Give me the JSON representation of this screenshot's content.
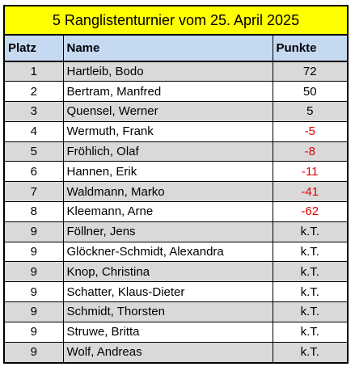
{
  "title": "5 Ranglistenturnier vom 25. April 2025",
  "headers": {
    "platz": "Platz",
    "name": "Name",
    "punkte": "Punkte"
  },
  "colors": {
    "title_background": "#ffff00",
    "header_background": "#c5d9f1",
    "odd_row_background": "#d9d9d9",
    "negative_points": "#e00000"
  },
  "rows": [
    {
      "platz": "1",
      "name": "Hartleib, Bodo",
      "punkte": "72",
      "negative": false
    },
    {
      "platz": "2",
      "name": "Bertram, Manfred",
      "punkte": "50",
      "negative": false
    },
    {
      "platz": "3",
      "name": "Quensel, Werner",
      "punkte": "5",
      "negative": false
    },
    {
      "platz": "4",
      "name": "Wermuth, Frank",
      "punkte": "-5",
      "negative": true
    },
    {
      "platz": "5",
      "name": "Fröhlich, Olaf",
      "punkte": "-8",
      "negative": true
    },
    {
      "platz": "6",
      "name": "Hannen, Erik",
      "punkte": "-11",
      "negative": true
    },
    {
      "platz": "7",
      "name": "Waldmann, Marko",
      "punkte": "-41",
      "negative": true
    },
    {
      "platz": "8",
      "name": "Kleemann, Arne",
      "punkte": "-62",
      "negative": true
    },
    {
      "platz": "9",
      "name": "Föllner, Jens",
      "punkte": "k.T.",
      "negative": false
    },
    {
      "platz": "9",
      "name": "Glöckner-Schmidt, Alexandra",
      "punkte": "k.T.",
      "negative": false
    },
    {
      "platz": "9",
      "name": "Knop, Christina",
      "punkte": "k.T.",
      "negative": false
    },
    {
      "platz": "9",
      "name": "Schatter, Klaus-Dieter",
      "punkte": "k.T.",
      "negative": false
    },
    {
      "platz": "9",
      "name": "Schmidt, Thorsten",
      "punkte": "k.T.",
      "negative": false
    },
    {
      "platz": "9",
      "name": "Struwe, Britta",
      "punkte": "k.T.",
      "negative": false
    },
    {
      "platz": "9",
      "name": "Wolf, Andreas",
      "punkte": "k.T.",
      "negative": false
    }
  ]
}
